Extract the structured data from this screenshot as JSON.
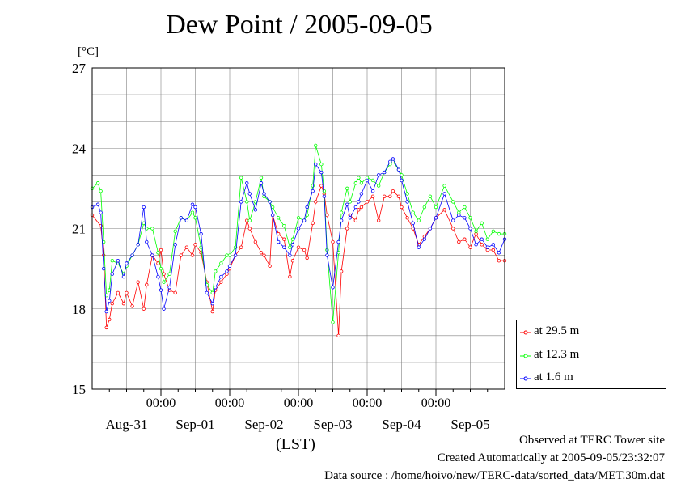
{
  "header": {
    "title": "Dew Point / 2005-09-05",
    "unit": "[°C]"
  },
  "footer": {
    "line1": "Observed at TERC Tower site",
    "line2": "Created Automatically at 2005-09-05/23:32:07",
    "line3": "Data source : /home/hoivo/new/TERC-data/sorted_data/MET.30m.dat"
  },
  "xaxis_title": "(LST)",
  "colors": {
    "red": "#ff0000",
    "green": "#00ff00",
    "blue": "#0000ff",
    "grid": "#808080"
  },
  "chart_data": {
    "type": "line",
    "title": "Dew Point / 2005-09-05",
    "ylabel": "[°C]",
    "xlabel": "(LST)",
    "ylim": [
      15,
      27
    ],
    "yticks": [
      15,
      18,
      21,
      24,
      27
    ],
    "x_hour_ticks": [
      "00:00",
      "00:00",
      "00:00",
      "00:00",
      "00:00"
    ],
    "x_day_labels": [
      "Aug-31",
      "Sep-01",
      "Sep-02",
      "Sep-03",
      "Sep-04",
      "Sep-05"
    ],
    "x_range_hours": [
      0,
      144
    ],
    "grid": true,
    "legend_position": "bottom-right",
    "series": [
      {
        "name": "at 29.5 m",
        "color": "#ff0000",
        "x": [
          0,
          3,
          4,
          5,
          6,
          7,
          9,
          11,
          12,
          14,
          16,
          18,
          19,
          21,
          23,
          24,
          25,
          27,
          29,
          31,
          33,
          35,
          36,
          38,
          40,
          42,
          43,
          45,
          47,
          48,
          50,
          52,
          54,
          55,
          57,
          59,
          60,
          62,
          63,
          65,
          67,
          69,
          70,
          72,
          74,
          75,
          77,
          78,
          80,
          81,
          82,
          84,
          86,
          87,
          89,
          90,
          92,
          93,
          94,
          96,
          98,
          100,
          102,
          104,
          105,
          107,
          108,
          110,
          112,
          114,
          116,
          118,
          120,
          123,
          126,
          128,
          130,
          132,
          134,
          136,
          138,
          140,
          142,
          144
        ],
        "y": [
          21.5,
          21.1,
          20.0,
          17.3,
          17.6,
          18.2,
          18.6,
          18.2,
          18.6,
          18.1,
          19.0,
          18.0,
          18.9,
          20.0,
          19.7,
          20.2,
          19.3,
          18.7,
          18.6,
          20.0,
          20.3,
          20.0,
          20.4,
          20.1,
          19.0,
          17.9,
          18.7,
          19.0,
          19.3,
          19.5,
          20.0,
          20.3,
          21.3,
          21.0,
          20.5,
          20.1,
          20.0,
          19.6,
          21.5,
          20.8,
          20.6,
          19.2,
          19.8,
          20.3,
          20.2,
          19.9,
          21.2,
          22.0,
          22.6,
          22.3,
          21.5,
          20.5,
          17.0,
          19.4,
          21.0,
          21.5,
          21.3,
          21.7,
          21.8,
          22.0,
          22.2,
          21.3,
          22.2,
          22.2,
          22.4,
          22.2,
          21.8,
          21.4,
          21.0,
          20.4,
          20.7,
          21.0,
          21.4,
          21.7,
          21.0,
          20.5,
          20.6,
          20.3,
          20.8,
          20.4,
          20.2,
          20.2,
          19.8,
          19.8
        ]
      },
      {
        "name": "at 12.3 m",
        "color": "#00ff00",
        "x": [
          0,
          2,
          3,
          4,
          5,
          6,
          7,
          9,
          11,
          12,
          14,
          16,
          18,
          19,
          21,
          23,
          24,
          25,
          27,
          29,
          31,
          33,
          35,
          36,
          38,
          40,
          42,
          43,
          45,
          47,
          48,
          50,
          52,
          54,
          55,
          57,
          59,
          60,
          62,
          63,
          65,
          67,
          69,
          70,
          72,
          74,
          75,
          77,
          78,
          80,
          81,
          82,
          84,
          86,
          87,
          89,
          90,
          92,
          93,
          94,
          96,
          98,
          100,
          102,
          104,
          105,
          107,
          108,
          110,
          112,
          114,
          116,
          118,
          120,
          123,
          126,
          128,
          130,
          132,
          134,
          136,
          138,
          140,
          142,
          144
        ],
        "y": [
          22.5,
          22.7,
          22.4,
          20.5,
          18.5,
          18.7,
          19.8,
          19.7,
          19.3,
          19.6,
          20.0,
          20.4,
          21.2,
          21.0,
          21.0,
          20.1,
          19.5,
          19.0,
          19.3,
          20.9,
          21.4,
          21.3,
          21.6,
          21.4,
          20.3,
          18.9,
          18.6,
          19.4,
          19.7,
          20.0,
          20.0,
          20.3,
          22.9,
          22.0,
          21.3,
          22.0,
          22.9,
          22.2,
          22.0,
          21.8,
          21.4,
          21.1,
          20.3,
          20.6,
          21.4,
          21.3,
          21.5,
          22.6,
          24.1,
          23.4,
          22.4,
          20.2,
          17.5,
          20.1,
          21.6,
          22.5,
          22.0,
          22.7,
          22.9,
          22.7,
          22.9,
          22.8,
          22.6,
          23.1,
          23.4,
          23.5,
          23.2,
          23.0,
          22.3,
          21.6,
          21.3,
          21.8,
          22.2,
          21.8,
          22.6,
          22.0,
          21.6,
          21.8,
          21.4,
          20.9,
          21.2,
          20.6,
          20.9,
          20.8,
          20.8
        ]
      },
      {
        "name": "at 1.6 m",
        "color": "#0000ff",
        "x": [
          0,
          2,
          3,
          4,
          5,
          6,
          7,
          9,
          11,
          12,
          14,
          16,
          18,
          19,
          21,
          23,
          24,
          25,
          27,
          29,
          31,
          33,
          35,
          36,
          38,
          40,
          42,
          43,
          45,
          47,
          48,
          50,
          52,
          54,
          55,
          57,
          59,
          60,
          62,
          63,
          65,
          67,
          69,
          70,
          72,
          74,
          75,
          77,
          78,
          80,
          81,
          82,
          84,
          86,
          87,
          89,
          90,
          92,
          93,
          94,
          96,
          98,
          100,
          102,
          104,
          105,
          107,
          108,
          110,
          112,
          114,
          116,
          118,
          120,
          123,
          126,
          128,
          130,
          132,
          134,
          136,
          138,
          140,
          142,
          144
        ],
        "y": [
          21.8,
          21.9,
          21.6,
          19.5,
          17.9,
          18.3,
          19.3,
          19.8,
          19.2,
          19.7,
          20.0,
          20.4,
          21.8,
          20.5,
          20.0,
          19.2,
          18.7,
          18.0,
          18.8,
          20.4,
          21.4,
          21.3,
          21.9,
          21.8,
          20.8,
          18.6,
          18.2,
          18.8,
          19.2,
          19.4,
          19.6,
          20.0,
          22.0,
          22.7,
          22.3,
          21.7,
          22.7,
          22.3,
          22.0,
          21.5,
          20.5,
          20.3,
          20.0,
          20.4,
          21.0,
          21.3,
          21.8,
          22.4,
          23.4,
          23.1,
          22.2,
          20.0,
          18.8,
          20.5,
          21.3,
          21.9,
          21.4,
          21.8,
          22.0,
          22.3,
          22.8,
          22.4,
          23.0,
          23.1,
          23.5,
          23.6,
          23.2,
          22.8,
          22.0,
          21.2,
          20.3,
          20.6,
          21.0,
          21.4,
          22.3,
          21.3,
          21.5,
          21.4,
          21.0,
          20.4,
          20.6,
          20.3,
          20.4,
          20.1,
          20.6
        ]
      }
    ]
  }
}
